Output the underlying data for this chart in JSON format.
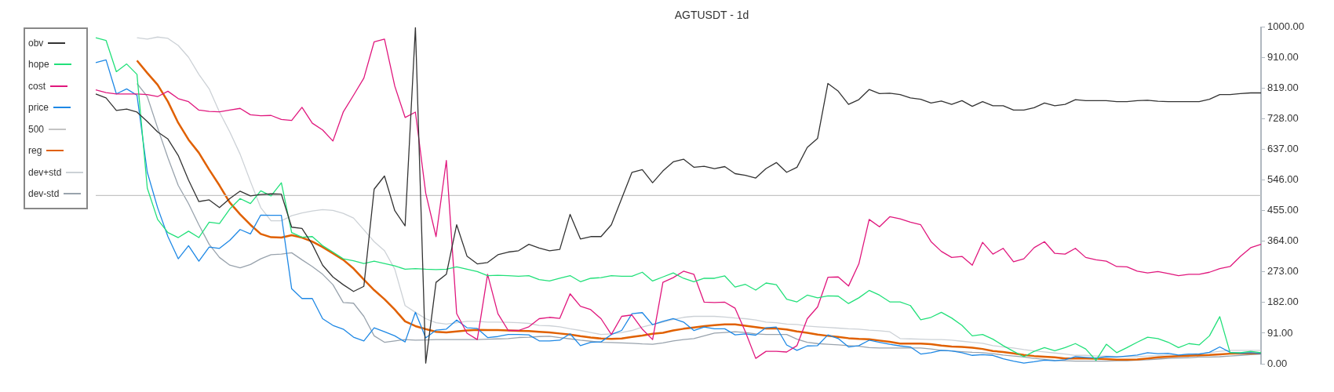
{
  "chart_data": {
    "type": "line",
    "title": "AGTUSDT - 1d",
    "categories": [
      null,
      null,
      null,
      null,
      null,
      null,
      null,
      null,
      null,
      null,
      null,
      null,
      null,
      null,
      null,
      null,
      null,
      null,
      null,
      null,
      null,
      null,
      null,
      null,
      null,
      null,
      null,
      null,
      null,
      null,
      null,
      null,
      null,
      null,
      null,
      null,
      null,
      null,
      null,
      null,
      null,
      null,
      null,
      null,
      null,
      null,
      null,
      null,
      null,
      null,
      null,
      null,
      null,
      null,
      null,
      null,
      null,
      null,
      null,
      null,
      null,
      null,
      null,
      null,
      null,
      null,
      null,
      null,
      null,
      null,
      null,
      null,
      null,
      null,
      null,
      null,
      null,
      null,
      null,
      null,
      null,
      null,
      null,
      null,
      null,
      null,
      null,
      null,
      null,
      null,
      null,
      null,
      null,
      null,
      null,
      null,
      null,
      null,
      null,
      null,
      null,
      null,
      null,
      null,
      null,
      null,
      null,
      null,
      null,
      null,
      null,
      null,
      null,
      null
    ],
    "series": [
      {
        "name": "obv",
        "color": "#333333",
        "values": [
          802,
          790,
          753,
          757,
          748,
          720,
          689,
          668,
          619,
          546,
          482,
          487,
          464,
          491,
          513,
          499,
          503,
          505,
          504,
          406,
          402,
          355,
          293,
          258,
          235,
          215,
          230,
          519,
          558,
          455,
          410,
          1000,
          2,
          242,
          266,
          413,
          320,
          297,
          301,
          324,
          332,
          336,
          355,
          344,
          336,
          340,
          444,
          371,
          378,
          378,
          413,
          491,
          569,
          577,
          538,
          573,
          600,
          608,
          584,
          587,
          580,
          586,
          565,
          560,
          552,
          580,
          598,
          569,
          584,
          643,
          670,
          833,
          810,
          771,
          785,
          815,
          803,
          804,
          800,
          790,
          786,
          775,
          781,
          771,
          782,
          765,
          779,
          767,
          767,
          754,
          754,
          761,
          775,
          767,
          771,
          785,
          782,
          782,
          782,
          779,
          779,
          782,
          783,
          780,
          779,
          779,
          779,
          779,
          786,
          800,
          800,
          803,
          805,
          805
        ]
      },
      {
        "name": "hope",
        "color": "#22e07a",
        "values": [
          969,
          961,
          868,
          891,
          860,
          522,
          429,
          390,
          375,
          394,
          375,
          421,
          417,
          460,
          491,
          476,
          514,
          499,
          538,
          390,
          376,
          378,
          351,
          332,
          312,
          306,
          298,
          305,
          298,
          291,
          281,
          283,
          281,
          280,
          281,
          288,
          281,
          274,
          262,
          263,
          262,
          260,
          262,
          250,
          246,
          254,
          262,
          244,
          254,
          256,
          262,
          260,
          260,
          272,
          246,
          258,
          270,
          254,
          244,
          254,
          254,
          261,
          228,
          236,
          219,
          240,
          235,
          192,
          184,
          204,
          196,
          202,
          201,
          179,
          196,
          218,
          204,
          184,
          184,
          173,
          131,
          138,
          153,
          136,
          114,
          83,
          87,
          73,
          54,
          37,
          21,
          37,
          48,
          39,
          48,
          60,
          44,
          10,
          58,
          33,
          48,
          64,
          79,
          75,
          64,
          48,
          60,
          56,
          83,
          140,
          33,
          33,
          37,
          33
        ]
      },
      {
        "name": "cost",
        "color": "#e0177d",
        "values": [
          814,
          806,
          802,
          802,
          802,
          800,
          794,
          810,
          788,
          779,
          754,
          750,
          749,
          754,
          759,
          740,
          737,
          738,
          726,
          723,
          762,
          715,
          695,
          662,
          748,
          798,
          849,
          957,
          965,
          825,
          732,
          748,
          507,
          378,
          604,
          149,
          91,
          72,
          266,
          149,
          99,
          99,
          110,
          134,
          138,
          135,
          208,
          171,
          161,
          134,
          87,
          141,
          145,
          103,
          72,
          242,
          256,
          275,
          266,
          183,
          182,
          183,
          165,
          95,
          16,
          37,
          37,
          35,
          54,
          134,
          169,
          257,
          258,
          231,
          297,
          429,
          407,
          437,
          431,
          421,
          413,
          363,
          334,
          316,
          319,
          293,
          361,
          326,
          343,
          303,
          312,
          345,
          363,
          328,
          326,
          343,
          316,
          309,
          305,
          289,
          288,
          275,
          270,
          274,
          268,
          262,
          266,
          266,
          272,
          283,
          289,
          319,
          345,
          355
        ]
      },
      {
        "name": "price",
        "color": "#1e88e5",
        "values": [
          895,
          903,
          802,
          817,
          798,
          569,
          464,
          378,
          312,
          351,
          305,
          347,
          343,
          367,
          399,
          386,
          442,
          441,
          441,
          223,
          194,
          194,
          134,
          114,
          103,
          79,
          68,
          107,
          95,
          83,
          65,
          153,
          77,
          100,
          103,
          130,
          107,
          105,
          78,
          81,
          87,
          87,
          86,
          68,
          68,
          70,
          89,
          54,
          64,
          65,
          87,
          99,
          149,
          152,
          116,
          126,
          134,
          124,
          99,
          109,
          104,
          104,
          86,
          89,
          85,
          107,
          109,
          56,
          40,
          53,
          54,
          86,
          75,
          50,
          54,
          70,
          64,
          58,
          53,
          50,
          29,
          33,
          40,
          38,
          33,
          25,
          27,
          25,
          15,
          8,
          2,
          6,
          11,
          9,
          12,
          21,
          19,
          17,
          21,
          20,
          23,
          26,
          33,
          30,
          31,
          26,
          29,
          29,
          34,
          50,
          34,
          31,
          33,
          30
        ]
      },
      {
        "name": "500",
        "color": "#c4c4c4",
        "values": [
          500,
          500,
          500,
          500,
          500,
          500,
          500,
          500,
          500,
          500,
          500,
          500,
          500,
          500,
          500,
          500,
          500,
          500,
          500,
          500,
          500,
          500,
          500,
          500,
          500,
          500,
          500,
          500,
          500,
          500,
          500,
          500,
          500,
          500,
          500,
          500,
          500,
          500,
          500,
          500,
          500,
          500,
          500,
          500,
          500,
          500,
          500,
          500,
          500,
          500,
          500,
          500,
          500,
          500,
          500,
          500,
          500,
          500,
          500,
          500,
          500,
          500,
          500,
          500,
          500,
          500,
          500,
          500,
          500,
          500,
          500,
          500,
          500,
          500,
          500,
          500,
          500,
          500,
          500,
          500,
          500,
          500,
          500,
          500,
          500,
          500,
          500,
          500,
          500,
          500,
          500,
          500,
          500,
          500,
          500,
          500,
          500,
          500,
          500,
          500,
          500,
          500,
          500,
          500,
          500,
          500,
          500,
          500,
          500,
          500,
          500,
          500,
          500,
          500
        ]
      },
      {
        "name": "reg",
        "color": "#e06000",
        "values": [
          null,
          null,
          null,
          null,
          901,
          864,
          829,
          779,
          716,
          666,
          627,
          577,
          530,
          479,
          444,
          413,
          386,
          376,
          375,
          382,
          375,
          363,
          347,
          328,
          309,
          283,
          250,
          219,
          192,
          161,
          126,
          112,
          103,
          95,
          93,
          96,
          99,
          101,
          100,
          100,
          99,
          98,
          97,
          95,
          93,
          90,
          87,
          82,
          78,
          75,
          74,
          75,
          80,
          84,
          89,
          92,
          99,
          104,
          108,
          112,
          115,
          117,
          117,
          113,
          109,
          105,
          105,
          102,
          96,
          92,
          87,
          83,
          80,
          76,
          74,
          73,
          69,
          65,
          60,
          60,
          60,
          58,
          54,
          51,
          50,
          48,
          44,
          38,
          35,
          31,
          26,
          23,
          21,
          19,
          16,
          16,
          16,
          15,
          14,
          12,
          12,
          13,
          16,
          19,
          21,
          23,
          24,
          25,
          26,
          28,
          30,
          31,
          31,
          31
        ]
      },
      {
        "name": "dev+std",
        "color": "#ccd1d6",
        "values": [
          null,
          null,
          null,
          null,
          969,
          965,
          971,
          967,
          946,
          911,
          860,
          817,
          748,
          689,
          623,
          542,
          464,
          425,
          425,
          440,
          448,
          454,
          458,
          456,
          447,
          433,
          398,
          363,
          336,
          281,
          173,
          153,
          134,
          122,
          118,
          122,
          126,
          126,
          124,
          124,
          123,
          122,
          120,
          114,
          113,
          110,
          104,
          99,
          93,
          87,
          89,
          93,
          99,
          109,
          117,
          124,
          132,
          138,
          141,
          141,
          141,
          139,
          136,
          134,
          130,
          124,
          122,
          118,
          117,
          112,
          110,
          108,
          106,
          104,
          103,
          100,
          98,
          95,
          75,
          74,
          73,
          72,
          72,
          70,
          67,
          64,
          61,
          54,
          50,
          47,
          42,
          38,
          35,
          32,
          29,
          25,
          25,
          23,
          23,
          22,
          21,
          21,
          23,
          24,
          26,
          26,
          28,
          30,
          33,
          37,
          40,
          40,
          40,
          40
        ]
      },
      {
        "name": "dev-std",
        "color": "#99a3ad",
        "values": [
          null,
          null,
          null,
          null,
          833,
          794,
          701,
          612,
          530,
          476,
          413,
          355,
          316,
          293,
          285,
          295,
          312,
          324,
          326,
          330,
          309,
          289,
          266,
          235,
          182,
          180,
          141,
          83,
          64,
          68,
          72,
          70,
          71,
          72,
          72,
          72,
          72,
          72,
          73,
          74,
          75,
          78,
          79,
          81,
          82,
          78,
          74,
          70,
          67,
          64,
          63,
          62,
          61,
          59,
          58,
          62,
          68,
          72,
          75,
          83,
          91,
          93,
          95,
          93,
          89,
          87,
          87,
          87,
          73,
          64,
          60,
          58,
          56,
          54,
          52,
          48,
          47,
          47,
          47,
          47,
          47,
          44,
          40,
          38,
          36,
          34,
          33,
          30,
          26,
          23,
          20,
          16,
          13,
          10,
          9,
          8,
          8,
          8,
          8,
          9,
          9,
          11,
          12,
          14,
          16,
          17,
          18,
          20,
          20,
          21,
          23,
          25,
          27,
          29
        ]
      }
    ],
    "ylim": [
      0,
      1000
    ],
    "yticks": [
      {
        "value": 0,
        "label": "0.00"
      },
      {
        "value": 91,
        "label": "91.00"
      },
      {
        "value": 182,
        "label": "182.00"
      },
      {
        "value": 273,
        "label": "273.00"
      },
      {
        "value": 364,
        "label": "364.00"
      },
      {
        "value": 455,
        "label": "455.00"
      },
      {
        "value": 546,
        "label": "546.00"
      },
      {
        "value": 637,
        "label": "637.00"
      },
      {
        "value": 728,
        "label": "728.00"
      },
      {
        "value": 819,
        "label": "819.00"
      },
      {
        "value": 910,
        "label": "910.00"
      },
      {
        "value": 1000,
        "label": "1000.00"
      }
    ],
    "grid": false,
    "legend": "top left",
    "marker": "none",
    "line_style": "solid",
    "tick_labels": "y"
  }
}
